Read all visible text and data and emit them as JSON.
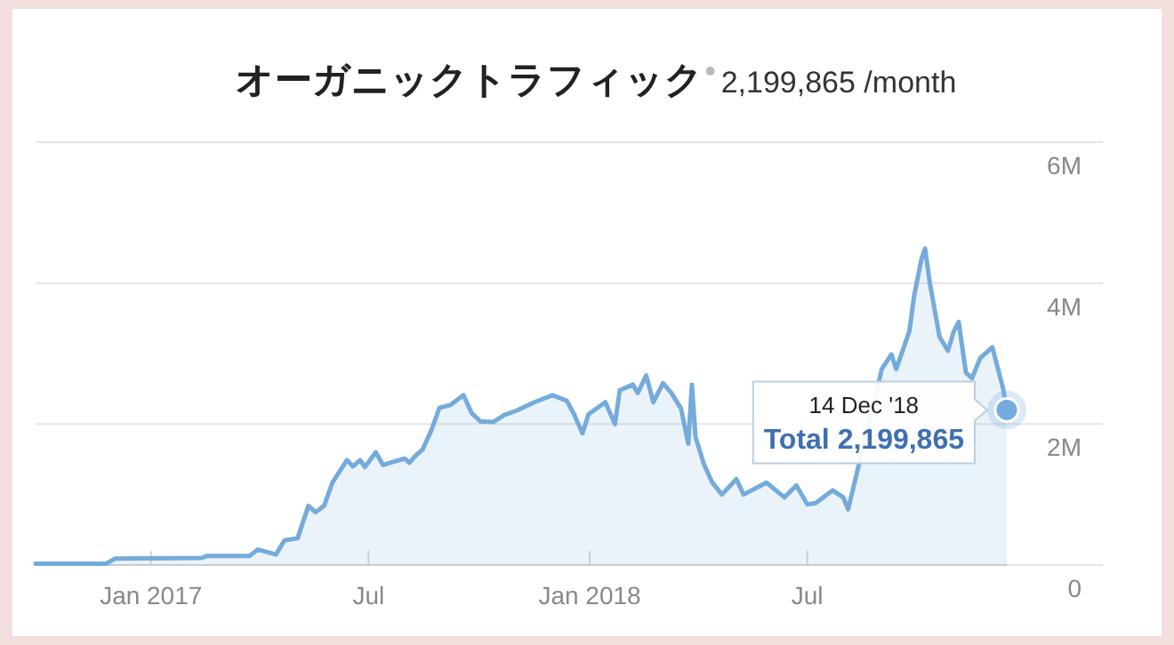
{
  "chart_data": {
    "type": "area",
    "title": "オーガニックトラフィック",
    "subtitle": "2,199,865 /month",
    "x": [
      "2016-09-27",
      "2016-11-25",
      "2016-12-02",
      "2017-02-12",
      "2017-02-17",
      "2017-03-24",
      "2017-03-31",
      "2017-04-15",
      "2017-04-22",
      "2017-05-03",
      "2017-05-12",
      "2017-05-18",
      "2017-05-25",
      "2017-06-01",
      "2017-06-13",
      "2017-06-18",
      "2017-06-24",
      "2017-06-28",
      "2017-07-07",
      "2017-07-13",
      "2017-07-31",
      "2017-08-04",
      "2017-08-09",
      "2017-08-15",
      "2017-08-22",
      "2017-08-29",
      "2017-09-07",
      "2017-09-18",
      "2017-09-25",
      "2017-10-02",
      "2017-10-13",
      "2017-10-22",
      "2017-11-01",
      "2017-11-16",
      "2017-12-01",
      "2017-12-13",
      "2017-12-19",
      "2017-12-26",
      "2017-12-31",
      "2018-01-14",
      "2018-01-22",
      "2018-01-26",
      "2018-02-06",
      "2018-02-10",
      "2018-02-17",
      "2018-02-23",
      "2018-03-03",
      "2018-03-10",
      "2018-03-18",
      "2018-03-24",
      "2018-03-27",
      "2018-03-30",
      "2018-04-06",
      "2018-04-13",
      "2018-04-21",
      "2018-05-03",
      "2018-05-09",
      "2018-05-28",
      "2018-06-12",
      "2018-06-22",
      "2018-07-01",
      "2018-07-08",
      "2018-07-22",
      "2018-07-31",
      "2018-08-04",
      "2018-09-01",
      "2018-09-09",
      "2018-09-13",
      "2018-09-24",
      "2018-09-28",
      "2018-10-04",
      "2018-10-07",
      "2018-10-11",
      "2018-10-19",
      "2018-10-26",
      "2018-10-31",
      "2018-11-04",
      "2018-11-10",
      "2018-11-15",
      "2018-11-22",
      "2018-12-02",
      "2018-12-11",
      "2018-12-14"
    ],
    "series": [
      {
        "color": "#74abdc",
        "values": [
          0.02,
          0.02,
          0.09,
          0.1,
          0.13,
          0.13,
          0.22,
          0.15,
          0.35,
          0.38,
          0.84,
          0.75,
          0.84,
          1.17,
          1.49,
          1.4,
          1.49,
          1.39,
          1.6,
          1.42,
          1.51,
          1.45,
          1.55,
          1.64,
          1.9,
          2.23,
          2.27,
          2.41,
          2.15,
          2.04,
          2.03,
          2.13,
          2.19,
          2.31,
          2.41,
          2.33,
          2.14,
          1.87,
          2.14,
          2.31,
          2.0,
          2.48,
          2.56,
          2.44,
          2.69,
          2.31,
          2.58,
          2.44,
          2.22,
          1.72,
          2.56,
          1.82,
          1.43,
          1.17,
          1.0,
          1.22,
          1.0,
          1.17,
          0.96,
          1.13,
          0.86,
          0.88,
          1.06,
          0.96,
          0.79,
          2.78,
          2.99,
          2.78,
          3.32,
          3.83,
          4.34,
          4.49,
          4.0,
          3.24,
          3.04,
          3.32,
          3.45,
          2.73,
          2.65,
          2.94,
          3.09,
          2.5,
          2.2
        ]
      }
    ],
    "xlim": [
      "2016-09-27",
      "2018-12-14"
    ],
    "xticks": [
      {
        "value": "2017-01-01",
        "label": "Jan 2017"
      },
      {
        "value": "2017-07-01",
        "label": "Jul"
      },
      {
        "value": "2018-01-01",
        "label": "Jan 2018"
      },
      {
        "value": "2018-07-01",
        "label": "Jul"
      }
    ],
    "ylim": [
      0,
      6
    ],
    "yticks": [
      {
        "value": 0,
        "label": "0"
      },
      {
        "value": 2,
        "label": "2M"
      },
      {
        "value": 4,
        "label": "4M"
      },
      {
        "value": 6,
        "label": "6M"
      }
    ],
    "grid": "y",
    "annotations": [
      {
        "text": "14 Dec '18\nTotal 2,199,865",
        "x": "2018-12-14",
        "y": 2.2
      }
    ]
  }
}
